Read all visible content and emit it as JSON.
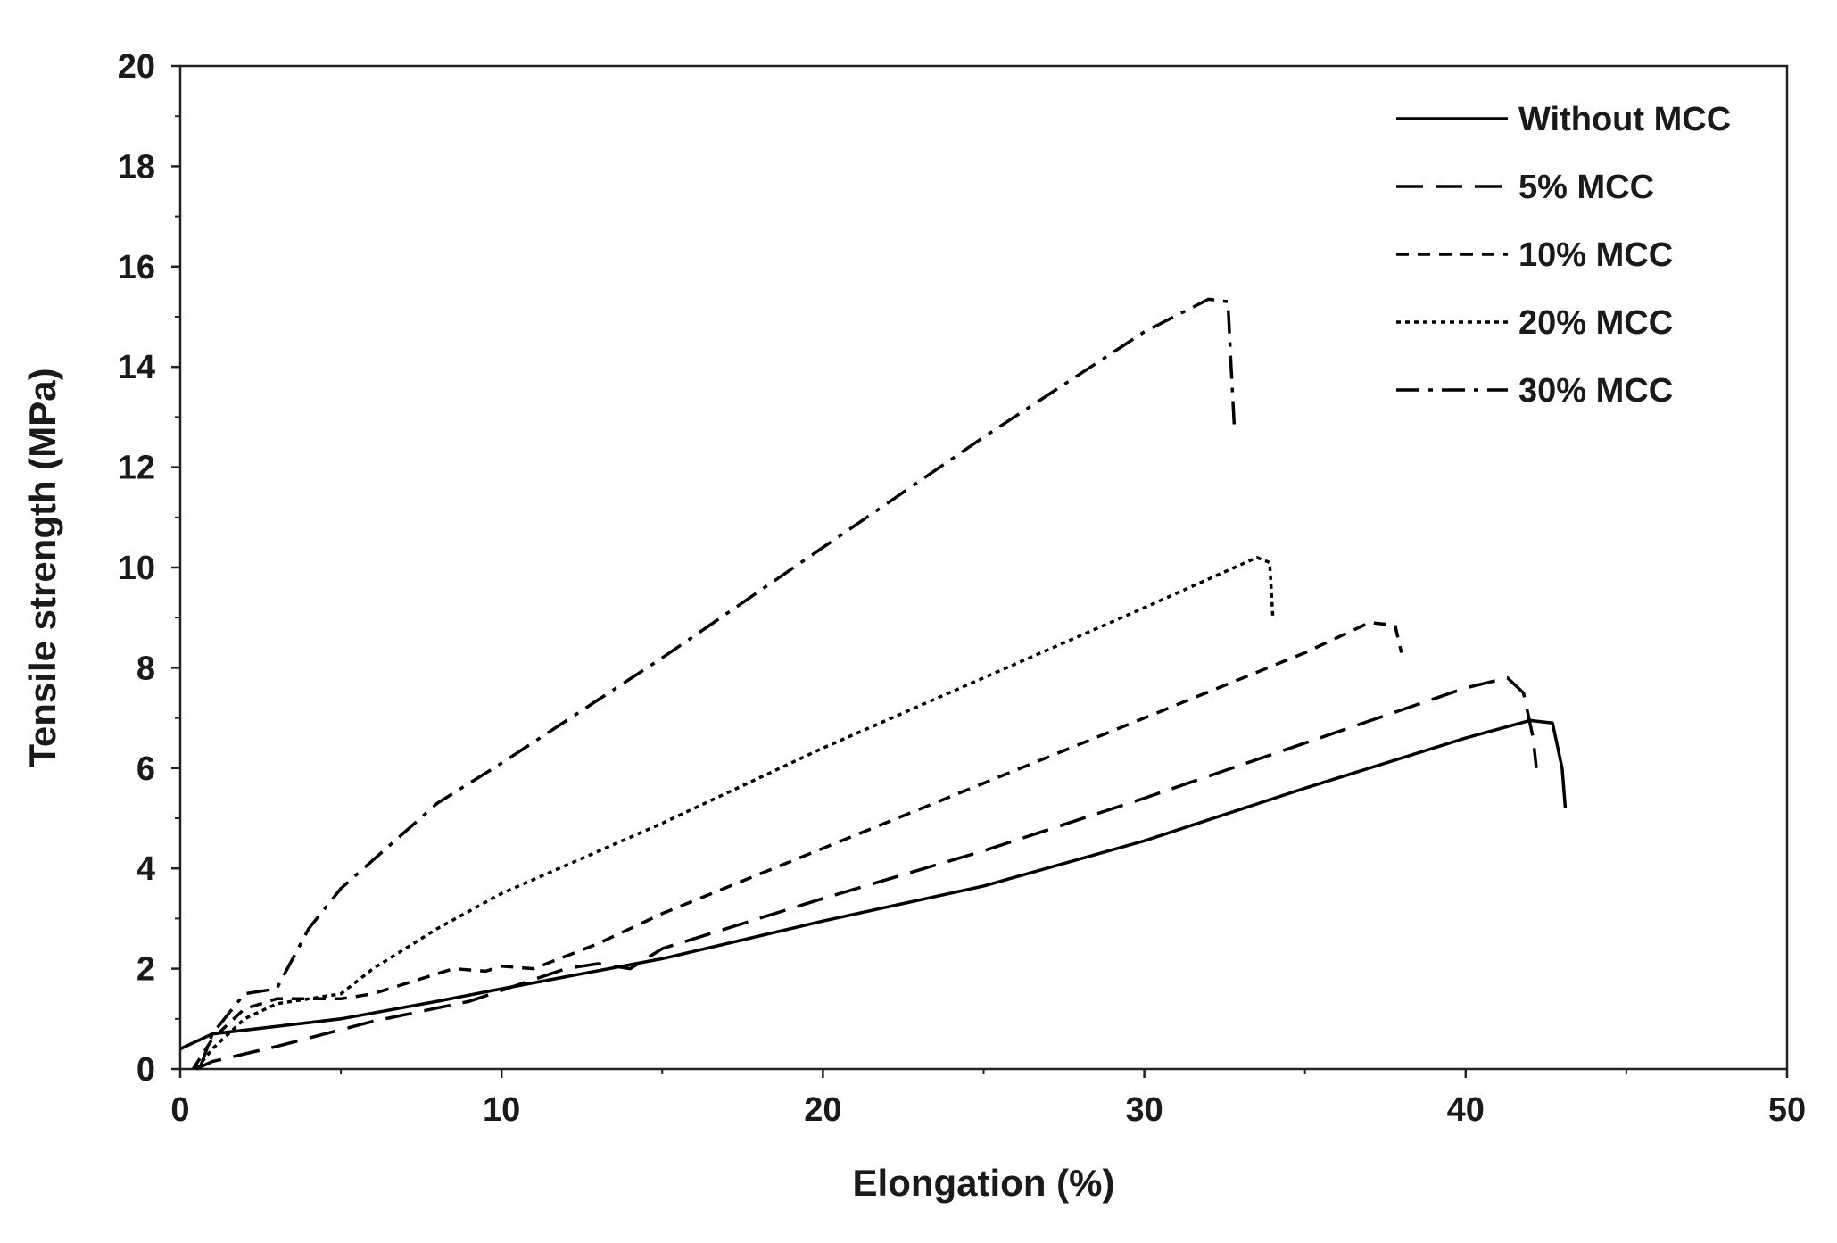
{
  "chart_data": {
    "type": "line",
    "title": "",
    "xlabel": "Elongation (%)",
    "ylabel": "Tensile strength (MPa)",
    "xlim": [
      0,
      50
    ],
    "ylim": [
      0,
      20
    ],
    "x_ticks": [
      0,
      10,
      20,
      30,
      40,
      50
    ],
    "y_ticks": [
      0,
      2,
      4,
      6,
      8,
      10,
      12,
      14,
      16,
      18,
      20
    ],
    "grid": false,
    "legend_position": "top-right",
    "series": [
      {
        "name": "Without MCC",
        "dash": "solid",
        "color": "#000000",
        "points": [
          [
            0,
            0.4
          ],
          [
            1,
            0.7
          ],
          [
            3,
            0.85
          ],
          [
            5,
            1.0
          ],
          [
            8,
            1.35
          ],
          [
            10,
            1.6
          ],
          [
            15,
            2.2
          ],
          [
            20,
            2.95
          ],
          [
            25,
            3.65
          ],
          [
            30,
            4.55
          ],
          [
            35,
            5.6
          ],
          [
            40,
            6.6
          ],
          [
            42,
            6.95
          ],
          [
            42.7,
            6.9
          ],
          [
            43,
            6.0
          ],
          [
            43.1,
            5.2
          ]
        ]
      },
      {
        "name": "5% MCC",
        "dash": "long-dash",
        "color": "#000000",
        "points": [
          [
            0.5,
            0.0
          ],
          [
            1,
            0.15
          ],
          [
            3,
            0.45
          ],
          [
            6,
            0.95
          ],
          [
            9,
            1.35
          ],
          [
            12,
            2.0
          ],
          [
            13,
            2.1
          ],
          [
            14,
            2.0
          ],
          [
            15,
            2.4
          ],
          [
            20,
            3.4
          ],
          [
            25,
            4.35
          ],
          [
            30,
            5.4
          ],
          [
            35,
            6.5
          ],
          [
            40,
            7.6
          ],
          [
            41.3,
            7.8
          ],
          [
            41.8,
            7.5
          ],
          [
            42.1,
            6.6
          ],
          [
            42.2,
            6.0
          ]
        ]
      },
      {
        "name": "10% MCC",
        "dash": "short-dash",
        "color": "#000000",
        "points": [
          [
            0.4,
            0.0
          ],
          [
            1,
            0.6
          ],
          [
            2,
            1.2
          ],
          [
            3,
            1.4
          ],
          [
            5,
            1.4
          ],
          [
            6,
            1.5
          ],
          [
            8.5,
            2.0
          ],
          [
            9.5,
            1.95
          ],
          [
            10,
            2.05
          ],
          [
            11,
            2.0
          ],
          [
            13,
            2.5
          ],
          [
            15,
            3.1
          ],
          [
            20,
            4.4
          ],
          [
            25,
            5.7
          ],
          [
            30,
            7.0
          ],
          [
            35,
            8.3
          ],
          [
            37,
            8.9
          ],
          [
            37.8,
            8.85
          ],
          [
            38,
            8.3
          ]
        ]
      },
      {
        "name": "20% MCC",
        "dash": "dotted",
        "color": "#000000",
        "points": [
          [
            0.5,
            0.0
          ],
          [
            1,
            0.4
          ],
          [
            2,
            1.0
          ],
          [
            3,
            1.3
          ],
          [
            5,
            1.5
          ],
          [
            6,
            2.0
          ],
          [
            8,
            2.8
          ],
          [
            10,
            3.5
          ],
          [
            15,
            4.9
          ],
          [
            20,
            6.4
          ],
          [
            25,
            7.8
          ],
          [
            30,
            9.2
          ],
          [
            33.5,
            10.2
          ],
          [
            33.9,
            10.1
          ],
          [
            34,
            9.0
          ]
        ]
      },
      {
        "name": "30% MCC",
        "dash": "dash-dot",
        "color": "#000000",
        "points": [
          [
            0.6,
            0.0
          ],
          [
            1,
            0.7
          ],
          [
            2,
            1.5
          ],
          [
            3,
            1.6
          ],
          [
            4,
            2.8
          ],
          [
            5,
            3.6
          ],
          [
            8,
            5.3
          ],
          [
            10,
            6.1
          ],
          [
            15,
            8.2
          ],
          [
            20,
            10.4
          ],
          [
            25,
            12.6
          ],
          [
            30,
            14.7
          ],
          [
            32,
            15.35
          ],
          [
            32.6,
            15.3
          ],
          [
            32.7,
            14.0
          ],
          [
            32.8,
            12.8
          ]
        ]
      }
    ]
  }
}
